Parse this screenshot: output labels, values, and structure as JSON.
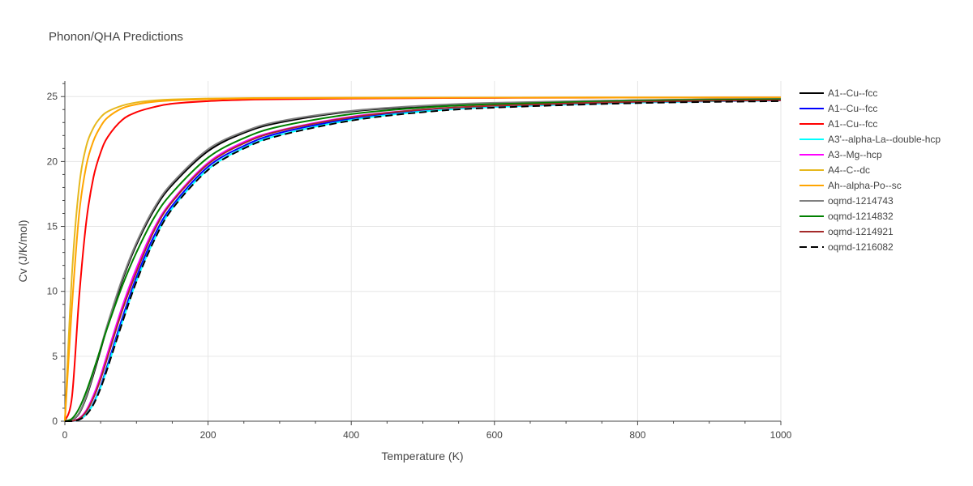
{
  "chart_data": {
    "type": "line",
    "title": "Phonon/QHA Predictions",
    "xlabel": "Temperature (K)",
    "ylabel": "Cv (J/K/mol)",
    "xlim": [
      0,
      1000
    ],
    "ylim": [
      0,
      26.2
    ],
    "xticks": [
      0,
      200,
      400,
      600,
      800,
      1000
    ],
    "yticks": [
      0,
      5,
      10,
      15,
      20,
      25
    ],
    "grid": true,
    "legend_position": "right",
    "x": [
      0,
      10,
      20,
      30,
      40,
      50,
      60,
      80,
      100,
      125,
      150,
      200,
      250,
      300,
      400,
      500,
      600,
      800,
      1000
    ],
    "series": [
      {
        "name": "A1--Cu--fcc",
        "color": "#000000",
        "dash": "solid",
        "values": [
          0,
          0.08,
          0.6,
          1.85,
          3.6,
          5.5,
          7.4,
          10.8,
          13.6,
          16.3,
          18.2,
          20.8,
          22.2,
          23.0,
          23.85,
          24.25,
          24.5,
          24.72,
          24.82
        ]
      },
      {
        "name": "A1--Cu--fcc",
        "color": "#0000ff",
        "dash": "solid",
        "values": [
          0,
          0.01,
          0.12,
          0.55,
          1.4,
          2.7,
          4.4,
          7.9,
          11.1,
          14.3,
          16.6,
          19.6,
          21.2,
          22.2,
          23.3,
          23.9,
          24.2,
          24.55,
          24.7
        ]
      },
      {
        "name": "A1--Cu--fcc",
        "color": "#ff0000",
        "dash": "solid",
        "values": [
          0,
          1.9,
          9.6,
          15.4,
          18.8,
          20.7,
          21.9,
          23.2,
          23.8,
          24.2,
          24.45,
          24.65,
          24.75,
          24.8,
          24.85,
          24.88,
          24.9,
          24.92,
          24.93
        ]
      },
      {
        "name": "A3'--alpha-La--double-hcp",
        "color": "#00ffff",
        "dash": "solid",
        "values": [
          0,
          0.01,
          0.12,
          0.55,
          1.35,
          2.6,
          4.2,
          7.6,
          10.8,
          14.0,
          16.4,
          19.4,
          21.05,
          22.05,
          23.2,
          23.85,
          24.2,
          24.55,
          24.7
        ]
      },
      {
        "name": "A3--Mg--hcp",
        "color": "#ff00ff",
        "dash": "solid",
        "values": [
          0,
          0.02,
          0.22,
          0.85,
          2.0,
          3.5,
          5.3,
          8.8,
          11.8,
          14.9,
          17.0,
          19.9,
          21.5,
          22.4,
          23.45,
          24.0,
          24.3,
          24.6,
          24.72
        ]
      },
      {
        "name": "A4--C--dc",
        "color": "#e6b81e",
        "dash": "solid",
        "values": [
          0,
          11.4,
          18.1,
          21.2,
          22.6,
          23.4,
          23.85,
          24.3,
          24.55,
          24.7,
          24.78,
          24.85,
          24.88,
          24.9,
          24.91,
          24.92,
          24.92,
          24.93,
          24.93
        ]
      },
      {
        "name": "Ah--alpha-Po--sc",
        "color": "#ffa500",
        "dash": "solid",
        "values": [
          0,
          8.9,
          16.0,
          19.7,
          21.6,
          22.7,
          23.4,
          24.1,
          24.4,
          24.6,
          24.7,
          24.8,
          24.85,
          24.88,
          24.9,
          24.91,
          24.92,
          24.93,
          24.93
        ]
      },
      {
        "name": "oqmd-1214743",
        "color": "#808080",
        "dash": "solid",
        "values": [
          0,
          0.09,
          0.65,
          1.95,
          3.75,
          5.65,
          7.55,
          10.95,
          13.75,
          16.45,
          18.35,
          20.95,
          22.3,
          23.1,
          23.9,
          24.3,
          24.52,
          24.73,
          24.83
        ]
      },
      {
        "name": "oqmd-1214832",
        "color": "#008000",
        "dash": "solid",
        "values": [
          0,
          0.2,
          1.0,
          2.3,
          3.9,
          5.6,
          7.3,
          10.4,
          13.0,
          15.7,
          17.6,
          20.3,
          21.8,
          22.7,
          23.65,
          24.15,
          24.42,
          24.68,
          24.8
        ]
      },
      {
        "name": "oqmd-1214921",
        "color": "#a52a2a",
        "dash": "solid",
        "values": [
          0,
          0.02,
          0.18,
          0.75,
          1.8,
          3.25,
          5.0,
          8.5,
          11.5,
          14.7,
          16.9,
          19.8,
          21.4,
          22.35,
          23.4,
          24.0,
          24.3,
          24.6,
          24.72
        ]
      },
      {
        "name": "oqmd-1216082",
        "color": "#000000",
        "dash": "dash",
        "values": [
          0,
          0.01,
          0.12,
          0.5,
          1.3,
          2.55,
          4.15,
          7.55,
          10.75,
          13.95,
          16.35,
          19.35,
          21.0,
          22.0,
          23.15,
          23.8,
          24.15,
          24.5,
          24.65
        ]
      }
    ]
  }
}
